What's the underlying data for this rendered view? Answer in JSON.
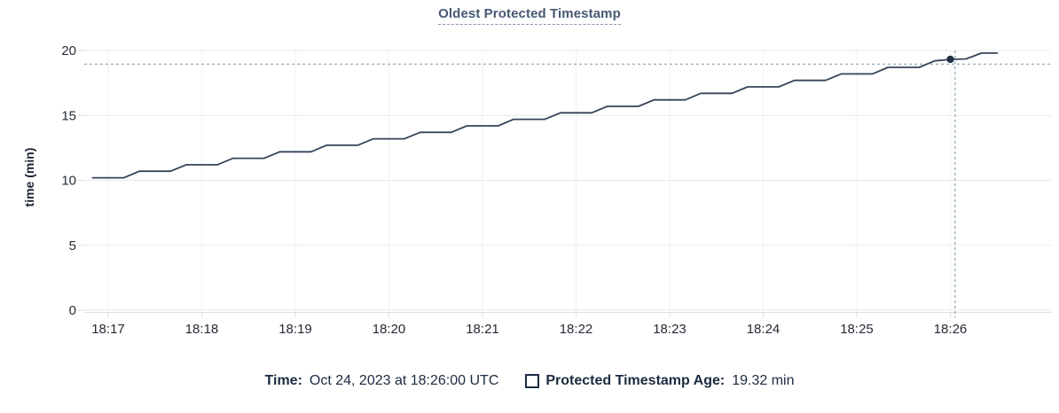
{
  "header": {
    "title": "Oldest Protected Timestamp"
  },
  "y_axis": {
    "label": "time (min)"
  },
  "tooltip_bar": {
    "time_label": "Time:",
    "time_value": "Oct 24, 2023 at 18:26:00 UTC",
    "series_label": "Protected Timestamp Age:",
    "series_value": "19.32 min"
  },
  "colors": {
    "title": "#475872",
    "axis_text": "#242a35",
    "line": "#36435a",
    "dot": "#242f42",
    "crosshair": "#93adbb",
    "grid_horizontal": "#e9e9ea",
    "grid_vertical": "#f0f1f2",
    "axis_line": "#dedfe0",
    "tick": "#d9dadb",
    "tooltip_text": "#1c2b41"
  },
  "chart_data": {
    "type": "line",
    "title": "Oldest Protected Timestamp",
    "xlabel": "",
    "ylabel": "time (min)",
    "y_ticks": [
      0,
      5,
      10,
      15,
      20
    ],
    "ylim": [
      0,
      20
    ],
    "x_tick_labels": [
      "18:17",
      "18:18",
      "18:19",
      "18:20",
      "18:21",
      "18:22",
      "18:23",
      "18:24",
      "18:25",
      "18:26"
    ],
    "grid": true,
    "legend_position": "bottom",
    "series": [
      {
        "name": "Protected Timestamp Age",
        "unit": "min",
        "points": [
          [
            "18:16:50",
            10.2
          ],
          [
            "18:17:00",
            10.2
          ],
          [
            "18:17:10",
            10.2
          ],
          [
            "18:17:20",
            10.7
          ],
          [
            "18:17:30",
            10.7
          ],
          [
            "18:17:40",
            10.7
          ],
          [
            "18:17:50",
            11.2
          ],
          [
            "18:18:00",
            11.2
          ],
          [
            "18:18:10",
            11.2
          ],
          [
            "18:18:20",
            11.7
          ],
          [
            "18:18:30",
            11.7
          ],
          [
            "18:18:40",
            11.7
          ],
          [
            "18:18:50",
            12.2
          ],
          [
            "18:19:00",
            12.2
          ],
          [
            "18:19:10",
            12.2
          ],
          [
            "18:19:20",
            12.7
          ],
          [
            "18:19:30",
            12.7
          ],
          [
            "18:19:40",
            12.7
          ],
          [
            "18:19:50",
            13.2
          ],
          [
            "18:20:00",
            13.2
          ],
          [
            "18:20:10",
            13.2
          ],
          [
            "18:20:20",
            13.7
          ],
          [
            "18:20:30",
            13.7
          ],
          [
            "18:20:40",
            13.7
          ],
          [
            "18:20:50",
            14.2
          ],
          [
            "18:21:00",
            14.2
          ],
          [
            "18:21:10",
            14.2
          ],
          [
            "18:21:20",
            14.7
          ],
          [
            "18:21:30",
            14.7
          ],
          [
            "18:21:40",
            14.7
          ],
          [
            "18:21:50",
            15.2
          ],
          [
            "18:22:00",
            15.2
          ],
          [
            "18:22:10",
            15.2
          ],
          [
            "18:22:20",
            15.7
          ],
          [
            "18:22:30",
            15.7
          ],
          [
            "18:22:40",
            15.7
          ],
          [
            "18:22:50",
            16.2
          ],
          [
            "18:23:00",
            16.2
          ],
          [
            "18:23:10",
            16.2
          ],
          [
            "18:23:20",
            16.7
          ],
          [
            "18:23:30",
            16.7
          ],
          [
            "18:23:40",
            16.7
          ],
          [
            "18:23:50",
            17.2
          ],
          [
            "18:24:00",
            17.2
          ],
          [
            "18:24:10",
            17.2
          ],
          [
            "18:24:20",
            17.7
          ],
          [
            "18:24:30",
            17.7
          ],
          [
            "18:24:40",
            17.7
          ],
          [
            "18:24:50",
            18.2
          ],
          [
            "18:25:00",
            18.2
          ],
          [
            "18:25:10",
            18.2
          ],
          [
            "18:25:20",
            18.7
          ],
          [
            "18:25:30",
            18.7
          ],
          [
            "18:25:40",
            18.7
          ],
          [
            "18:25:50",
            19.2
          ],
          [
            "18:26:00",
            19.32
          ],
          [
            "18:26:10",
            19.35
          ],
          [
            "18:26:20",
            19.8
          ],
          [
            "18:26:30",
            19.8
          ]
        ]
      }
    ],
    "highlight_point": {
      "time": "18:26:00",
      "value": 19.32
    },
    "crosshair": {
      "time": "18:26:03",
      "value": 18.95
    }
  }
}
